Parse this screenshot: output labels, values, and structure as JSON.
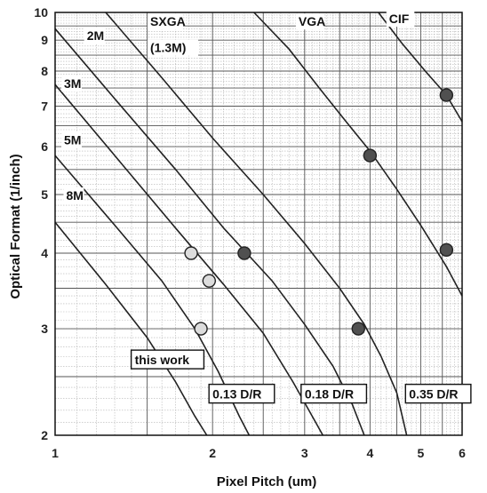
{
  "chart_data": {
    "type": "scatter",
    "title": "",
    "xlabel": "Pixel Pitch (um)",
    "ylabel": "Optical Format (1/inch)",
    "xscale": "log",
    "yscale": "log",
    "xlim": [
      1,
      6
    ],
    "ylim": [
      2,
      10
    ],
    "x_ticks": [
      "1",
      "2",
      "3",
      "4",
      "5",
      "6"
    ],
    "y_ticks": [
      "2",
      "3",
      "4",
      "5",
      "6",
      "7",
      "8",
      "9",
      "10"
    ],
    "grid": true,
    "curves": [
      {
        "name": "8M",
        "points": [
          [
            1.0,
            4.5
          ],
          [
            1.25,
            3.55
          ],
          [
            1.5,
            2.9
          ],
          [
            1.7,
            2.45
          ],
          [
            1.85,
            2.15
          ],
          [
            1.95,
            2.0
          ]
        ]
      },
      {
        "name": "5M",
        "points": [
          [
            1.0,
            5.8
          ],
          [
            1.3,
            4.45
          ],
          [
            1.6,
            3.6
          ],
          [
            1.85,
            3.0
          ],
          [
            2.05,
            2.55
          ],
          [
            2.25,
            2.15
          ],
          [
            2.35,
            2.0
          ]
        ]
      },
      {
        "name": "3M",
        "points": [
          [
            1.0,
            7.6
          ],
          [
            1.3,
            5.8
          ],
          [
            1.7,
            4.4
          ],
          [
            2.1,
            3.55
          ],
          [
            2.5,
            2.95
          ],
          [
            2.85,
            2.45
          ],
          [
            3.15,
            2.1
          ],
          [
            3.25,
            2.0
          ]
        ]
      },
      {
        "name": "2M",
        "points": [
          [
            1.0,
            9.4
          ],
          [
            1.3,
            7.2
          ],
          [
            1.7,
            5.5
          ],
          [
            2.1,
            4.4
          ],
          [
            2.6,
            3.6
          ],
          [
            3.0,
            3.05
          ],
          [
            3.4,
            2.6
          ],
          [
            3.7,
            2.25
          ],
          [
            3.9,
            2.0
          ]
        ]
      },
      {
        "name": "SXGA (1.3M)",
        "points": [
          [
            1.25,
            10.0
          ],
          [
            1.6,
            7.8
          ],
          [
            2.0,
            6.2
          ],
          [
            2.5,
            5.0
          ],
          [
            3.0,
            4.15
          ],
          [
            3.5,
            3.5
          ],
          [
            3.9,
            3.05
          ],
          [
            4.2,
            2.7
          ],
          [
            4.5,
            2.35
          ],
          [
            4.7,
            2.0
          ]
        ]
      },
      {
        "name": "VGA",
        "points": [
          [
            2.4,
            10.0
          ],
          [
            2.8,
            8.7
          ],
          [
            3.2,
            7.5
          ],
          [
            3.6,
            6.6
          ],
          [
            4.0,
            5.9
          ],
          [
            4.5,
            5.1
          ],
          [
            5.0,
            4.45
          ],
          [
            5.6,
            3.8
          ],
          [
            6.0,
            3.4
          ]
        ]
      },
      {
        "name": "CIF",
        "points": [
          [
            4.15,
            10.0
          ],
          [
            4.6,
            8.9
          ],
          [
            5.1,
            8.0
          ],
          [
            5.6,
            7.3
          ],
          [
            6.0,
            6.6
          ]
        ]
      }
    ],
    "series": [
      {
        "name": "this work",
        "color": "#dcdcdc",
        "points": [
          [
            1.82,
            4.0
          ],
          [
            1.97,
            3.6
          ],
          [
            1.9,
            3.0
          ]
        ]
      },
      {
        "name": "0.13 D/R",
        "color": "#505050",
        "points": [
          [
            2.3,
            4.0
          ]
        ]
      },
      {
        "name": "0.18 D/R",
        "color": "#505050",
        "points": [
          [
            3.8,
            3.0
          ],
          [
            4.0,
            5.8
          ]
        ]
      },
      {
        "name": "0.35 D/R",
        "color": "#505050",
        "points": [
          [
            5.6,
            7.3
          ],
          [
            5.6,
            4.05
          ]
        ]
      }
    ],
    "curve_labels": [
      "2M",
      "3M",
      "5M",
      "8M",
      "SXGA",
      "(1.3M)",
      "VGA",
      "CIF"
    ],
    "box_labels": [
      "this work",
      "0.13 D/R",
      "0.18 D/R",
      "0.35 D/R"
    ]
  }
}
